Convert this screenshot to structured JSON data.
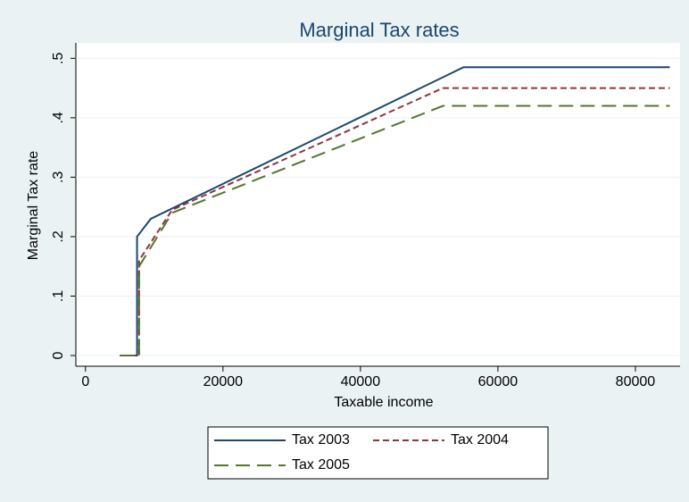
{
  "chart_data": {
    "type": "line",
    "title": "Marginal Tax rates",
    "x_label": "Taxable income",
    "y_label": "Marginal Tax rate",
    "xlim": [
      -1400,
      86500
    ],
    "xticks": [
      0,
      20000,
      40000,
      60000,
      80000
    ],
    "ylim": [
      -0.018,
      0.526
    ],
    "yticks": [
      0,
      {
        "value": 0.1,
        "label": ".1"
      },
      {
        "value": 0.2,
        "label": ".2"
      },
      {
        "value": 0.3,
        "label": ".3"
      },
      {
        "value": 0.4,
        "label": ".4"
      },
      {
        "value": 0.5,
        "label": ".5"
      }
    ],
    "grid": true,
    "legend": "bottom",
    "series": [
      {
        "name": "Tax 2003",
        "color": "#1a476f",
        "line_style": "solid",
        "x": [
          5000,
          7500,
          7500,
          9500,
          55000,
          85000
        ],
        "values": [
          0,
          0,
          0.2,
          0.23,
          0.485,
          0.485
        ]
      },
      {
        "name": "Tax 2004",
        "color": "#90353b",
        "line_style": "dash",
        "x": [
          5000,
          7800,
          7800,
          12600,
          52000,
          85000
        ],
        "values": [
          0,
          0,
          0.16,
          0.245,
          0.45,
          0.45
        ]
      },
      {
        "name": "Tax 2005",
        "color": "#55752f",
        "line_style": "longdash",
        "x": [
          5000,
          7800,
          7800,
          12600,
          52000,
          85000
        ],
        "values": [
          0,
          0,
          0.15,
          0.24,
          0.42,
          0.42
        ]
      }
    ]
  }
}
